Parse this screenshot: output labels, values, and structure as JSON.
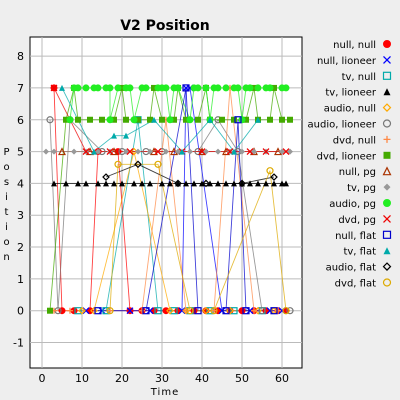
{
  "chart_data": {
    "type": "scatter",
    "title": "V2 Position",
    "xlabel": "Time",
    "ylabel": "Position",
    "xlim": [
      -3,
      65
    ],
    "ylim": [
      -1.8,
      8.6
    ],
    "xticks": [
      0,
      10,
      20,
      30,
      40,
      50,
      60
    ],
    "yticks": [
      -1,
      0,
      1,
      2,
      3,
      4,
      5,
      6,
      7,
      8
    ],
    "grid": true,
    "legend_position": "right",
    "series": [
      {
        "name": "null, null",
        "color": "#ff0000",
        "marker": "circle-filled",
        "points": [
          [
            3,
            7
          ],
          [
            5,
            0
          ],
          [
            8,
            0
          ],
          [
            12,
            0
          ],
          [
            14,
            5
          ],
          [
            19,
            5
          ],
          [
            22,
            0
          ],
          [
            25,
            0
          ],
          [
            28,
            0
          ],
          [
            31,
            0
          ],
          [
            34,
            0
          ],
          [
            38,
            0
          ],
          [
            41,
            0
          ],
          [
            44,
            0
          ],
          [
            47,
            0
          ],
          [
            50,
            0
          ],
          [
            53,
            0
          ],
          [
            56,
            0
          ],
          [
            59,
            0
          ],
          [
            61,
            0
          ]
        ]
      },
      {
        "name": "null, lioneer",
        "color": "#0000ff",
        "marker": "x",
        "points": [
          [
            11,
            0
          ],
          [
            15,
            0
          ],
          [
            22,
            0
          ],
          [
            27,
            0
          ],
          [
            35,
            0
          ],
          [
            36,
            7
          ],
          [
            37,
            7
          ],
          [
            45,
            0
          ],
          [
            52,
            0
          ],
          [
            57,
            0
          ],
          [
            60,
            0
          ]
        ]
      },
      {
        "name": "tv, null",
        "color": "#00aaaa",
        "marker": "square-open",
        "points": [
          [
            9,
            0
          ],
          [
            16,
            0
          ],
          [
            24,
            6
          ],
          [
            29,
            0
          ],
          [
            33,
            0
          ],
          [
            37,
            0
          ],
          [
            42,
            0
          ],
          [
            48,
            0
          ],
          [
            55,
            0
          ]
        ]
      },
      {
        "name": "tv, lioneer",
        "color": "#000000",
        "marker": "triangle-filled",
        "points": [
          [
            3,
            4
          ],
          [
            6,
            4
          ],
          [
            9,
            4
          ],
          [
            11,
            4
          ],
          [
            14,
            4
          ],
          [
            16,
            4
          ],
          [
            18,
            4
          ],
          [
            20,
            4
          ],
          [
            23,
            4
          ],
          [
            25,
            4
          ],
          [
            27,
            4
          ],
          [
            30,
            4
          ],
          [
            32,
            4
          ],
          [
            34,
            4
          ],
          [
            36,
            4
          ],
          [
            38,
            4
          ],
          [
            40,
            4
          ],
          [
            42,
            4
          ],
          [
            44,
            4
          ],
          [
            46,
            4
          ],
          [
            48,
            4
          ],
          [
            50,
            4
          ],
          [
            52,
            4
          ],
          [
            54,
            4
          ],
          [
            56,
            4
          ],
          [
            58,
            4
          ],
          [
            60,
            4
          ],
          [
            61,
            4
          ]
        ]
      },
      {
        "name": "audio, null",
        "color": "#ffaa00",
        "marker": "diamond-open",
        "points": [
          [
            10,
            0
          ],
          [
            13,
            0
          ],
          [
            23,
            5
          ],
          [
            32,
            0
          ],
          [
            36,
            0
          ],
          [
            41,
            0
          ],
          [
            47,
            0
          ],
          [
            54,
            0
          ],
          [
            58,
            0
          ]
        ]
      },
      {
        "name": "audio, lioneer",
        "color": "#777777",
        "marker": "circle-open",
        "points": [
          [
            2,
            6
          ],
          [
            4,
            0
          ],
          [
            7,
            6
          ],
          [
            15,
            5
          ],
          [
            20,
            5
          ],
          [
            26,
            5
          ],
          [
            30,
            5
          ],
          [
            39,
            5
          ],
          [
            44,
            6
          ],
          [
            49,
            5
          ],
          [
            55,
            0
          ],
          [
            62,
            0
          ]
        ]
      },
      {
        "name": "dvd, null",
        "color": "#ff8844",
        "marker": "plus",
        "points": [
          [
            3,
            0
          ],
          [
            7,
            0
          ],
          [
            17,
            0
          ],
          [
            25,
            0
          ],
          [
            31,
            6
          ],
          [
            36,
            0
          ],
          [
            43,
            0
          ],
          [
            47,
            7
          ],
          [
            53,
            0
          ],
          [
            59,
            0
          ]
        ]
      },
      {
        "name": "dvd, lioneer",
        "color": "#44aa00",
        "marker": "square-filled",
        "points": [
          [
            2,
            0
          ],
          [
            6,
            6
          ],
          [
            9,
            6
          ],
          [
            12,
            6
          ],
          [
            15,
            6
          ],
          [
            18,
            6
          ],
          [
            21,
            6
          ],
          [
            24,
            6
          ],
          [
            27,
            6
          ],
          [
            30,
            6
          ],
          [
            33,
            6
          ],
          [
            36,
            6
          ],
          [
            39,
            6
          ],
          [
            42,
            6
          ],
          [
            45,
            6
          ],
          [
            48,
            6
          ],
          [
            51,
            6
          ],
          [
            54,
            6
          ],
          [
            57,
            6
          ],
          [
            60,
            6
          ],
          [
            62,
            6
          ],
          [
            8,
            7
          ],
          [
            20,
            7
          ],
          [
            28,
            7
          ],
          [
            34,
            7
          ],
          [
            41,
            7
          ],
          [
            53,
            7
          ],
          [
            58,
            7
          ]
        ]
      },
      {
        "name": "null, pg",
        "color": "#aa3300",
        "marker": "triangle-open",
        "points": [
          [
            5,
            5
          ],
          [
            12,
            5
          ],
          [
            18,
            5
          ],
          [
            28,
            5
          ],
          [
            33,
            5
          ],
          [
            40,
            5
          ],
          [
            46,
            5
          ],
          [
            53,
            5
          ],
          [
            59,
            5
          ]
        ]
      },
      {
        "name": "tv, pg",
        "color": "#999999",
        "marker": "diamond-filled",
        "points": [
          [
            1,
            5
          ],
          [
            3,
            5
          ],
          [
            8,
            5
          ],
          [
            11,
            5
          ],
          [
            14,
            5
          ],
          [
            17,
            5
          ],
          [
            21,
            5
          ],
          [
            24,
            5
          ],
          [
            27,
            5
          ],
          [
            31,
            5
          ],
          [
            34,
            5
          ],
          [
            37,
            5
          ],
          [
            41,
            5
          ],
          [
            44,
            5
          ],
          [
            47,
            5
          ],
          [
            50,
            5
          ],
          [
            53,
            5
          ],
          [
            56,
            5
          ],
          [
            60,
            5
          ],
          [
            62,
            5
          ]
        ]
      },
      {
        "name": "audio, pg",
        "color": "#22ee22",
        "marker": "circle-filled",
        "points": [
          [
            8,
            7
          ],
          [
            9,
            7
          ],
          [
            11,
            7
          ],
          [
            13,
            7
          ],
          [
            14,
            7
          ],
          [
            16,
            7
          ],
          [
            17,
            7
          ],
          [
            19,
            7
          ],
          [
            21,
            7
          ],
          [
            22,
            7
          ],
          [
            25,
            7
          ],
          [
            26,
            7
          ],
          [
            29,
            7
          ],
          [
            30,
            7
          ],
          [
            31,
            7
          ],
          [
            33,
            7
          ],
          [
            34,
            7
          ],
          [
            38,
            7
          ],
          [
            39,
            7
          ],
          [
            41,
            7
          ],
          [
            43,
            7
          ],
          [
            44,
            7
          ],
          [
            46,
            7
          ],
          [
            48,
            7
          ],
          [
            49,
            7
          ],
          [
            51,
            7
          ],
          [
            52,
            7
          ],
          [
            54,
            7
          ],
          [
            56,
            7
          ],
          [
            57,
            7
          ],
          [
            60,
            7
          ],
          [
            61,
            7
          ],
          [
            7,
            6
          ],
          [
            17,
            6
          ],
          [
            23,
            6
          ],
          [
            32,
            6
          ],
          [
            37,
            6
          ],
          [
            42,
            6
          ],
          [
            50,
            6
          ]
        ]
      },
      {
        "name": "dvd, pg",
        "color": "#ee0000",
        "marker": "x",
        "points": [
          [
            3,
            7
          ],
          [
            11,
            5
          ],
          [
            17,
            5
          ],
          [
            22,
            5
          ],
          [
            29,
            5
          ],
          [
            35,
            5
          ],
          [
            40,
            5
          ],
          [
            47,
            5
          ],
          [
            52,
            5
          ],
          [
            56,
            5
          ],
          [
            61,
            5
          ]
        ]
      },
      {
        "name": "null, flat",
        "color": "#0000cc",
        "marker": "square-open",
        "points": [
          [
            14,
            0
          ],
          [
            26,
            0
          ],
          [
            36,
            7
          ],
          [
            39,
            0
          ],
          [
            46,
            0
          ],
          [
            49,
            6
          ],
          [
            51,
            0
          ],
          [
            58,
            0
          ]
        ]
      },
      {
        "name": "tv, flat",
        "color": "#00aaaa",
        "marker": "triangle-filled",
        "points": [
          [
            5,
            7
          ],
          [
            13,
            5
          ],
          [
            18,
            5.5
          ],
          [
            21,
            5.5
          ],
          [
            28,
            6
          ],
          [
            35,
            5
          ],
          [
            42,
            6
          ],
          [
            48,
            5
          ],
          [
            54,
            6
          ]
        ]
      },
      {
        "name": "audio, flat",
        "color": "#000000",
        "marker": "diamond-open",
        "points": [
          [
            16,
            4.2
          ],
          [
            24,
            4.6
          ],
          [
            34,
            4
          ],
          [
            41,
            4
          ],
          [
            50,
            4
          ],
          [
            58,
            4.2
          ]
        ]
      },
      {
        "name": "dvd, flat",
        "color": "#ddaa00",
        "marker": "circle-open",
        "points": [
          [
            17,
            0
          ],
          [
            19,
            4.6
          ],
          [
            29,
            4.6
          ],
          [
            37,
            0
          ],
          [
            43,
            0
          ],
          [
            57,
            4.4
          ],
          [
            61,
            0
          ]
        ]
      }
    ]
  }
}
